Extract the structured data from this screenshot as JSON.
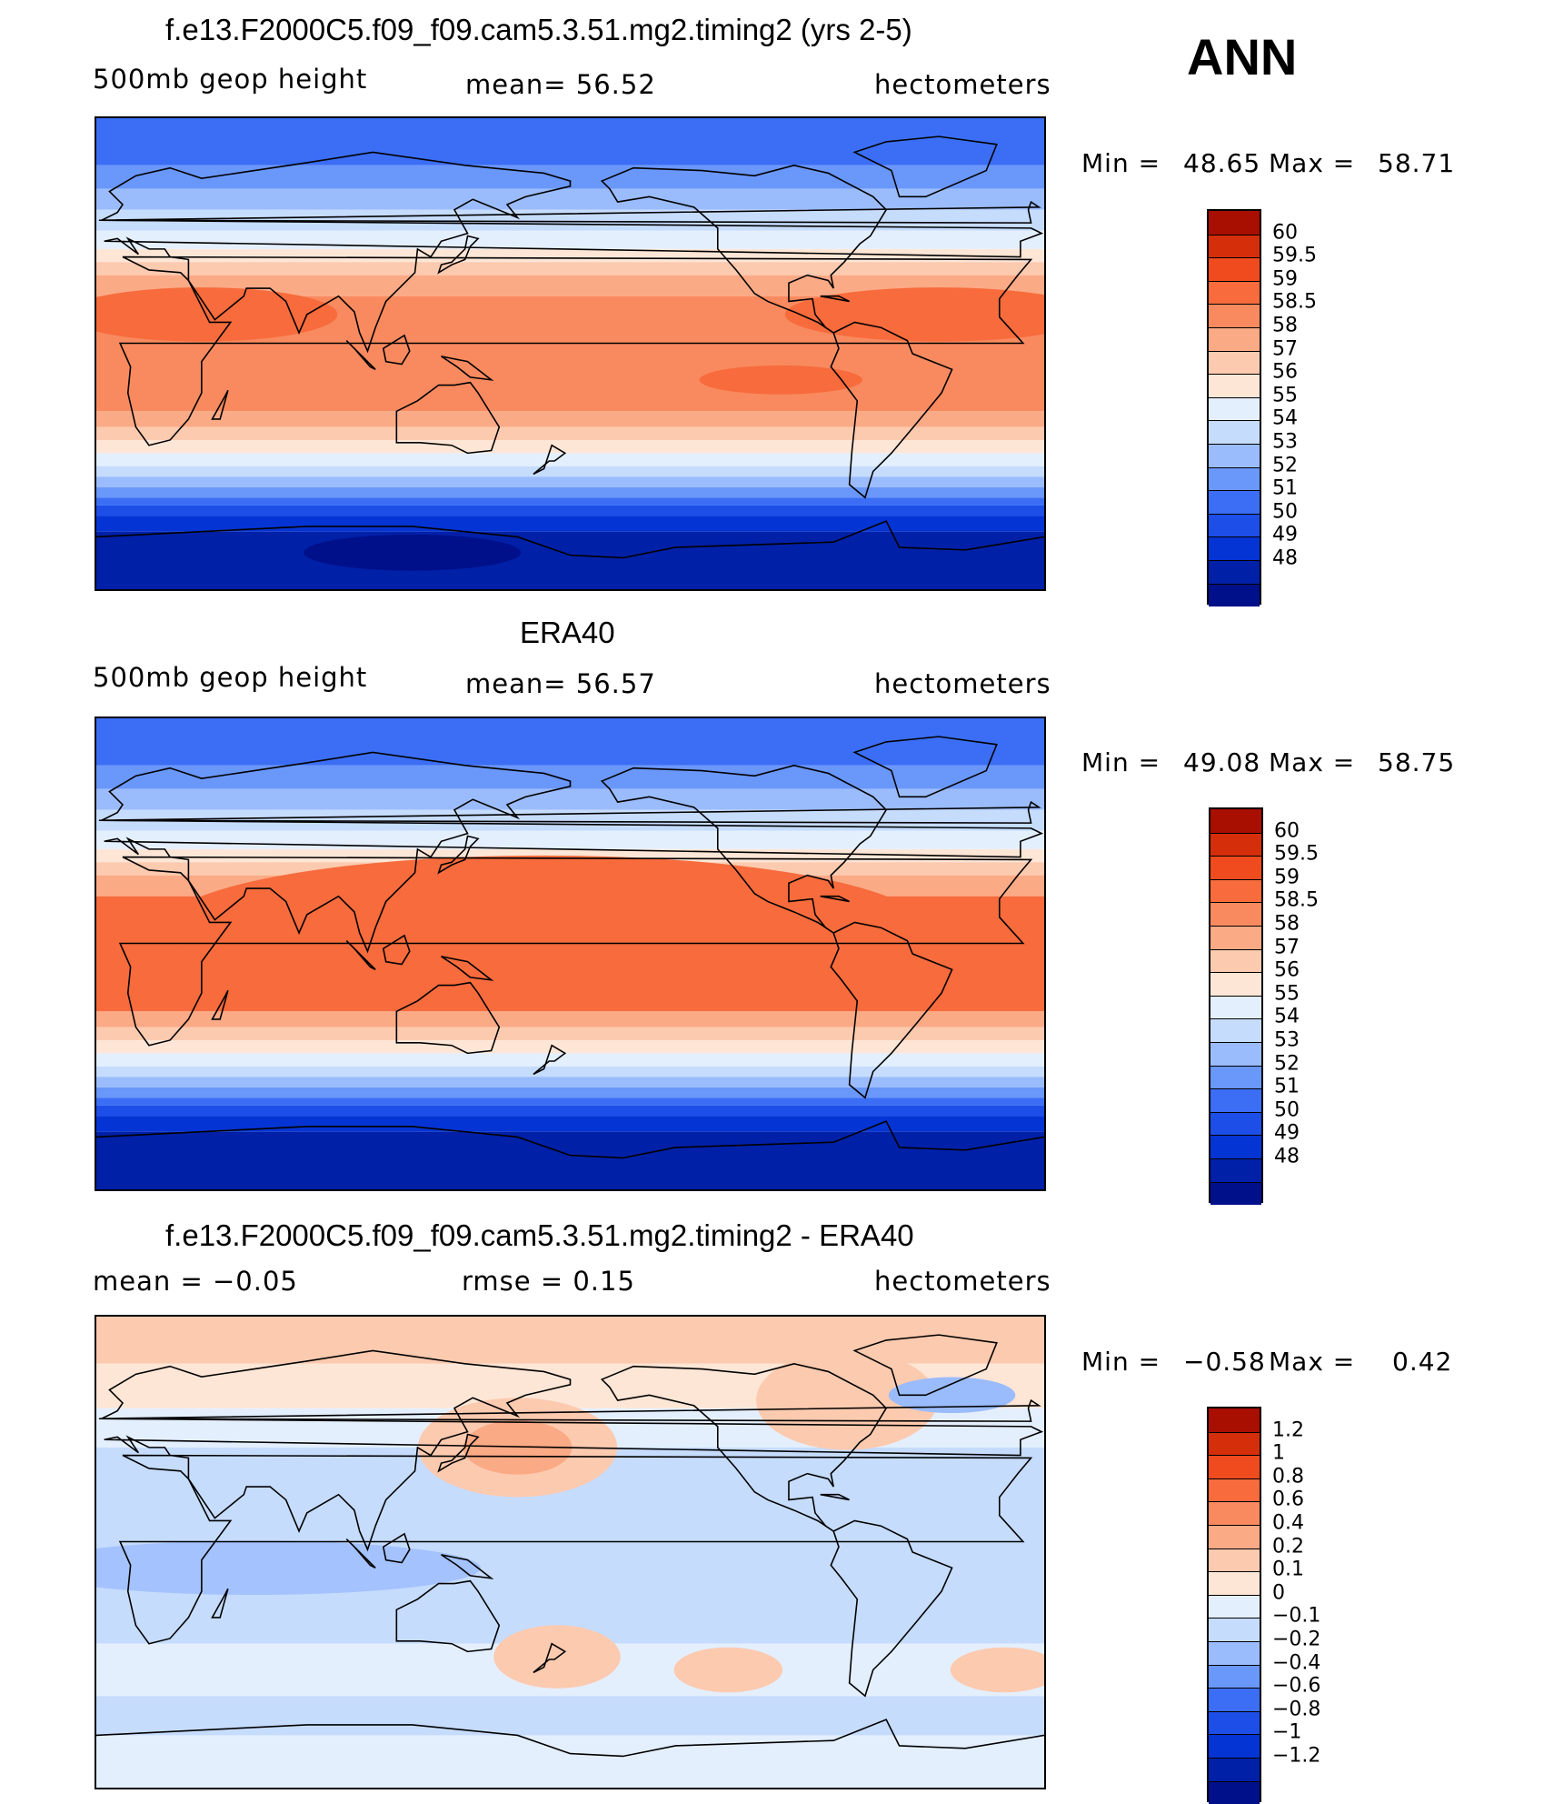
{
  "season": "ANN",
  "colors": {
    "abs_levels": [
      "#00108a",
      "#0020a8",
      "#0534d4",
      "#1d4ee8",
      "#3b6ef5",
      "#6a97fa",
      "#9bbcfc",
      "#c6dcfd",
      "#e4effe",
      "#fde6d6",
      "#fccaaf",
      "#fbaa86",
      "#f98a5f",
      "#f76b3c",
      "#f04b1e",
      "#d42e0a",
      "#a80f00"
    ],
    "diff_levels": [
      "#00108a",
      "#0020a8",
      "#0534d4",
      "#1d4ee8",
      "#3b6ef5",
      "#6a97fa",
      "#9bbcfc",
      "#c6dcfd",
      "#e4effe",
      "#fde6d6",
      "#fccaaf",
      "#fbaa86",
      "#f98a5f",
      "#f76b3c",
      "#f04b1e",
      "#d42e0a",
      "#a80f00"
    ],
    "land_line": "#000000"
  },
  "panels": [
    {
      "title": "f.e13.F2000C5.f09_f09.cam5.3.51.mg2.timing2 (yrs 2-5)",
      "left_label": "500mb geop height",
      "mid_label": "mean=   56.52",
      "units": "hectometers",
      "min_label": "Min =",
      "min_value": "48.65",
      "max_label": "Max =",
      "max_value": "58.71",
      "colorbar_labels": [
        "60",
        "59.5",
        "59",
        "58.5",
        "58",
        "57",
        "56",
        "55",
        "54",
        "53",
        "52",
        "51",
        "50",
        "49",
        "48"
      ]
    },
    {
      "title": "ERA40",
      "left_label": "500mb geop height",
      "mid_label": "mean=   56.57",
      "units": "hectometers",
      "min_label": "Min =",
      "min_value": "49.08",
      "max_label": "Max =",
      "max_value": "58.75",
      "colorbar_labels": [
        "60",
        "59.5",
        "59",
        "58.5",
        "58",
        "57",
        "56",
        "55",
        "54",
        "53",
        "52",
        "51",
        "50",
        "49",
        "48"
      ]
    },
    {
      "title": "f.e13.F2000C5.f09_f09.cam5.3.51.mg2.timing2 - ERA40",
      "left_label": "mean =   −0.05",
      "mid_label": "rmse =    0.15",
      "units": "hectometers",
      "min_label": "Min =",
      "min_value": "−0.58",
      "max_label": "Max =",
      "max_value": "0.42",
      "colorbar_labels": [
        "1.2",
        "1",
        "0.8",
        "0.6",
        "0.4",
        "0.2",
        "0.1",
        "0",
        "−0.1",
        "−0.2",
        "−0.4",
        "−0.6",
        "−0.8",
        "−1",
        "−1.2"
      ]
    }
  ]
}
